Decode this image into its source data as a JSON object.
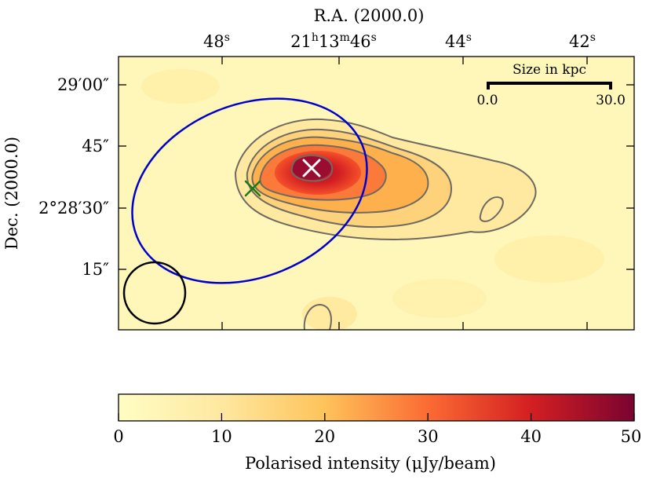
{
  "chart_data": {
    "type": "heatmap",
    "title": "",
    "colormap": "YlOrRd-like (light yellow to dark red)",
    "xlabel": "R.A. (2000.0)",
    "ylabel": "Dec. (2000.0)",
    "x_ticks": [
      {
        "label": "48",
        "sup": "s"
      },
      {
        "label": "21",
        "sup": "h",
        "label2": "13",
        "sup2": "m",
        "label3": "46",
        "sup3": "s"
      },
      {
        "label": "44",
        "sup": "s"
      },
      {
        "label": "42",
        "sup": "s"
      }
    ],
    "y_ticks": [
      {
        "label": "29′00″"
      },
      {
        "label": "45″"
      },
      {
        "label": "2°28′30″"
      },
      {
        "label": "15″"
      }
    ],
    "colorbar": {
      "label": "Polarised intensity (μJy/beam)",
      "min": 0,
      "max": 50,
      "ticks": [
        "0",
        "10",
        "20",
        "30",
        "40",
        "50"
      ]
    },
    "contour_levels_relative": [
      0.08,
      0.2,
      0.35,
      0.55,
      0.78
    ],
    "peak_intensity": 48,
    "markers": [
      {
        "name": "peak-position",
        "symbol": "x",
        "color": "#ffffff"
      },
      {
        "name": "optical-position",
        "symbol": "x",
        "color": "#1a7a1a"
      }
    ],
    "ellipse_color": "#0000cc",
    "beam_color": "#000000",
    "scalebar": {
      "title": "Size in kpc",
      "min_label": "0.0",
      "max_label": "30.0"
    }
  }
}
